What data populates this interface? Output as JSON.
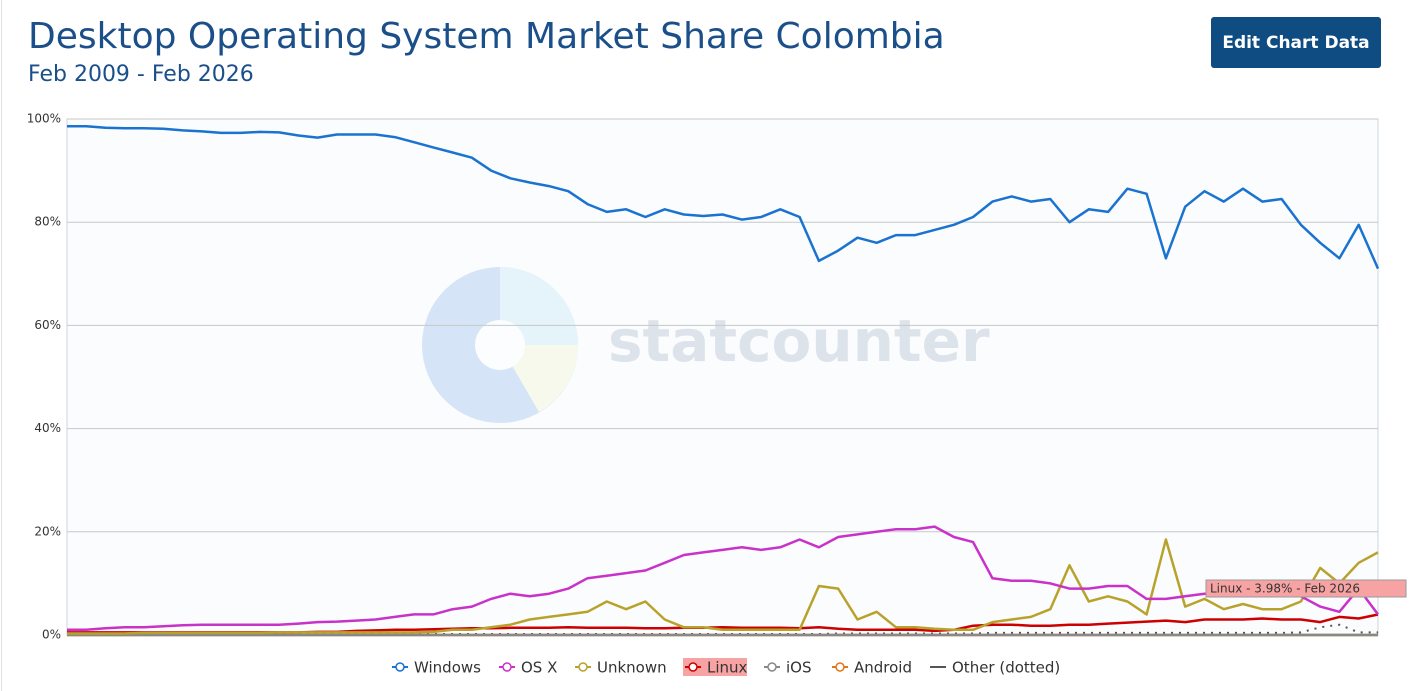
{
  "header": {
    "button": "Edit Chart Data"
  },
  "chart_data": {
    "type": "line",
    "title": "Desktop Operating System Market Share Colombia",
    "subtitle": "Feb 2009 - Feb 2026",
    "watermark": "statcounter",
    "tooltip": "Linux - 3.98% - Feb 2026",
    "ylim": [
      0,
      100
    ],
    "yticks": [
      {
        "value": 0,
        "label": "0%"
      },
      {
        "value": 20,
        "label": "20%"
      },
      {
        "value": 40,
        "label": "40%"
      },
      {
        "value": 60,
        "label": "60%"
      },
      {
        "value": 80,
        "label": "80%"
      },
      {
        "value": 100,
        "label": "100%"
      }
    ],
    "grid": true,
    "legend": "bottom",
    "series": [
      {
        "name": "Windows",
        "color": "#1a73d0",
        "values": [
          98.6,
          98.6,
          98.3,
          98.2,
          98.2,
          98.1,
          97.8,
          97.6,
          97.3,
          97.3,
          97.5,
          97.4,
          96.8,
          96.4,
          97,
          97,
          97,
          96.5,
          95.5,
          94.5,
          93.5,
          92.5,
          90,
          88.5,
          87.7,
          87,
          86,
          83.5,
          82,
          82.5,
          81,
          82.5,
          81.5,
          81.2,
          81.5,
          80.5,
          81,
          82.5,
          81,
          72.5,
          74.5,
          77,
          76,
          77.5,
          77.5,
          78.5,
          79.5,
          81,
          84,
          85,
          84,
          84.5,
          80,
          82.5,
          82,
          86.5,
          85.5,
          73,
          83,
          86,
          84,
          86.5,
          84,
          84.5,
          79.5,
          76,
          73,
          79.5,
          71
        ]
      },
      {
        "name": "OS X",
        "color": "#c932c9",
        "values": [
          1,
          1,
          1.3,
          1.5,
          1.5,
          1.7,
          1.9,
          2,
          2,
          2,
          2,
          2,
          2.2,
          2.5,
          2.6,
          2.8,
          3,
          3.5,
          4,
          4,
          5,
          5.5,
          7,
          8,
          7.5,
          8,
          9,
          11,
          11.5,
          12,
          12.5,
          14,
          15.5,
          16,
          16.5,
          17,
          16.5,
          17,
          18.5,
          17,
          19,
          19.5,
          20,
          20.5,
          20.5,
          21,
          19,
          18,
          11,
          10.5,
          10.5,
          10,
          9,
          9,
          9.5,
          9.5,
          7,
          7,
          7.5,
          8,
          8,
          8,
          8,
          8,
          7.5,
          5.5,
          4.5,
          9,
          4
        ]
      },
      {
        "name": "Unknown",
        "color": "#b9a22b",
        "values": [
          0.3,
          0.3,
          0.3,
          0.3,
          0.4,
          0.4,
          0.4,
          0.4,
          0.4,
          0.4,
          0.4,
          0.5,
          0.5,
          0.5,
          0.5,
          0.5,
          0.5,
          0.5,
          0.5,
          0.6,
          1,
          1,
          1.5,
          2,
          3,
          3.5,
          4,
          4.5,
          6.5,
          5,
          6.5,
          3,
          1.5,
          1.5,
          1,
          1,
          1,
          1,
          1,
          9.5,
          9,
          3,
          4.5,
          1.5,
          1.5,
          1.2,
          1,
          1,
          2.5,
          3,
          3.5,
          5,
          13.5,
          6.5,
          7.5,
          6.5,
          4,
          18.5,
          5.5,
          7,
          5,
          6,
          5,
          5,
          6.5,
          13,
          10,
          14,
          16
        ]
      },
      {
        "name": "Linux",
        "color": "#cc0000",
        "values": [
          0.5,
          0.5,
          0.5,
          0.5,
          0.5,
          0.5,
          0.5,
          0.5,
          0.5,
          0.5,
          0.5,
          0.5,
          0.5,
          0.6,
          0.6,
          0.8,
          0.9,
          1,
          1,
          1.1,
          1.2,
          1.3,
          1.3,
          1.4,
          1.4,
          1.4,
          1.5,
          1.4,
          1.4,
          1.4,
          1.3,
          1.3,
          1.4,
          1.4,
          1.5,
          1.4,
          1.4,
          1.4,
          1.3,
          1.5,
          1.2,
          1,
          1,
          1,
          1,
          0.8,
          1,
          1.8,
          2,
          2,
          1.8,
          1.8,
          2,
          2,
          2.2,
          2.4,
          2.6,
          2.8,
          2.5,
          3,
          3,
          3,
          3.2,
          3,
          3,
          2.5,
          3.5,
          3.2,
          3.98
        ]
      },
      {
        "name": "iOS",
        "color": "#888888",
        "values": [
          0,
          0,
          0,
          0,
          0,
          0,
          0,
          0,
          0,
          0,
          0,
          0,
          0,
          0,
          0,
          0,
          0,
          0,
          0,
          0,
          0,
          0,
          0,
          0,
          0,
          0,
          0,
          0,
          0,
          0,
          0,
          0,
          0,
          0,
          0,
          0,
          0,
          0,
          0,
          0,
          0,
          0,
          0,
          0,
          0,
          0,
          0,
          0,
          0,
          0,
          0,
          0,
          0,
          0,
          0,
          0,
          0,
          0,
          0,
          0,
          0,
          0,
          0,
          0,
          0,
          0,
          0,
          0,
          0
        ]
      },
      {
        "name": "Android",
        "color": "#e0761c",
        "values": [
          0,
          0,
          0,
          0,
          0,
          0,
          0,
          0,
          0,
          0,
          0,
          0,
          0,
          0,
          0,
          0,
          0,
          0,
          0,
          0,
          0,
          0,
          0,
          0,
          0,
          0,
          0,
          0,
          0,
          0,
          0,
          0,
          0,
          0,
          0,
          0,
          0,
          0,
          0,
          0,
          0,
          0,
          0,
          0,
          0,
          0,
          0,
          0,
          0,
          0,
          0,
          0,
          0,
          0,
          0,
          0,
          0,
          0,
          0,
          0,
          0,
          0,
          0,
          0,
          0,
          0,
          0,
          0,
          0
        ]
      },
      {
        "name": "Other (dotted)",
        "color": "#555555",
        "values": [
          0.2,
          0.2,
          0.2,
          0.2,
          0.2,
          0.2,
          0.2,
          0.2,
          0.2,
          0.2,
          0.2,
          0.2,
          0.2,
          0.2,
          0.2,
          0.2,
          0.2,
          0.2,
          0.2,
          0.2,
          0.2,
          0.2,
          0.2,
          0.2,
          0.2,
          0.2,
          0.2,
          0.2,
          0.2,
          0.2,
          0.2,
          0.2,
          0.2,
          0.2,
          0.2,
          0.2,
          0.2,
          0.2,
          0.2,
          0.2,
          0.3,
          0.3,
          0.3,
          0.3,
          0.3,
          0.3,
          0.3,
          0.3,
          0.4,
          0.4,
          0.4,
          0.4,
          0.4,
          0.4,
          0.4,
          0.4,
          0.4,
          0.4,
          0.4,
          0.4,
          0.4,
          0.4,
          0.4,
          0.4,
          0.5,
          1.5,
          2,
          0.5,
          0.5
        ]
      }
    ]
  }
}
